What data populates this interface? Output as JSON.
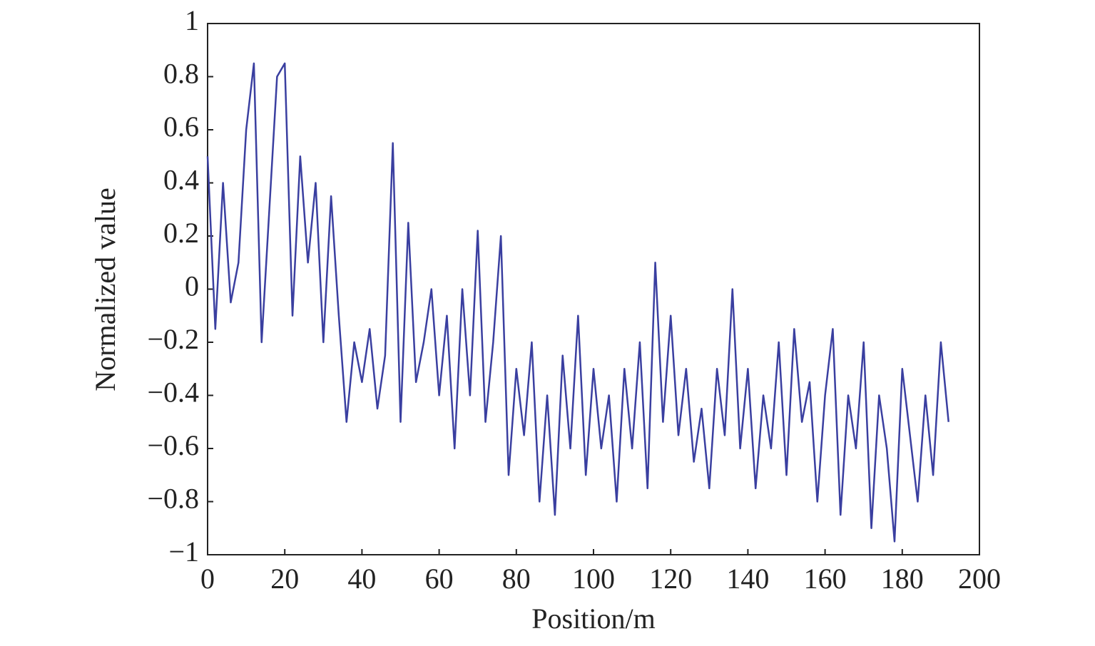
{
  "chart_data": {
    "type": "line",
    "x_label": "Position/m",
    "y_label": "Normalized value",
    "x": [
      0,
      2,
      4,
      6,
      8,
      10,
      12,
      14,
      16,
      18,
      20,
      22,
      24,
      26,
      28,
      30,
      32,
      34,
      36,
      38,
      40,
      42,
      44,
      46,
      48,
      50,
      52,
      54,
      56,
      58,
      60,
      62,
      64,
      66,
      68,
      70,
      72,
      74,
      76,
      78,
      80,
      82,
      84,
      86,
      88,
      90,
      92,
      94,
      96,
      98,
      100,
      102,
      104,
      106,
      108,
      110,
      112,
      114,
      116,
      118,
      120,
      122,
      124,
      126,
      128,
      130,
      132,
      134,
      136,
      138,
      140,
      142,
      144,
      146,
      148,
      150,
      152,
      154,
      156,
      158,
      160,
      162,
      164,
      166,
      168,
      170,
      172,
      174,
      176,
      178,
      180,
      182,
      184,
      186,
      188,
      190,
      192
    ],
    "series": [
      {
        "color": "#3a3fa0",
        "values": [
          0.5,
          -0.15,
          0.4,
          -0.05,
          0.1,
          0.6,
          0.85,
          -0.2,
          0.3,
          0.8,
          0.85,
          -0.1,
          0.5,
          0.1,
          0.4,
          -0.2,
          0.35,
          -0.1,
          -0.5,
          -0.2,
          -0.35,
          -0.15,
          -0.45,
          -0.25,
          0.55,
          -0.5,
          0.25,
          -0.35,
          -0.2,
          0.0,
          -0.4,
          -0.1,
          -0.6,
          0.0,
          -0.4,
          0.22,
          -0.5,
          -0.2,
          0.2,
          -0.7,
          -0.3,
          -0.55,
          -0.2,
          -0.8,
          -0.4,
          -0.85,
          -0.25,
          -0.6,
          -0.1,
          -0.7,
          -0.3,
          -0.6,
          -0.4,
          -0.8,
          -0.3,
          -0.6,
          -0.2,
          -0.75,
          0.1,
          -0.5,
          -0.1,
          -0.55,
          -0.3,
          -0.65,
          -0.45,
          -0.75,
          -0.3,
          -0.55,
          0.0,
          -0.6,
          -0.3,
          -0.75,
          -0.4,
          -0.6,
          -0.2,
          -0.7,
          -0.15,
          -0.5,
          -0.35,
          -0.8,
          -0.4,
          -0.15,
          -0.85,
          -0.4,
          -0.6,
          -0.2,
          -0.9,
          -0.4,
          -0.6,
          -0.95,
          -0.3,
          -0.55,
          -0.8,
          -0.4,
          -0.7,
          -0.2,
          -0.5
        ]
      }
    ],
    "xlim": [
      0,
      200
    ],
    "xticks": [
      0,
      20,
      40,
      60,
      80,
      100,
      120,
      140,
      160,
      180,
      200
    ],
    "ylim": [
      -1,
      1
    ],
    "yticks": [
      {
        "value": -1,
        "label": "−1"
      },
      {
        "value": -0.8,
        "label": "−0.8"
      },
      {
        "value": -0.6,
        "label": "−0.6"
      },
      {
        "value": -0.4,
        "label": "−0.4"
      },
      {
        "value": -0.2,
        "label": "−0.2"
      },
      0,
      0.2,
      0.4,
      0.6,
      0.8,
      1
    ],
    "grid": false
  }
}
